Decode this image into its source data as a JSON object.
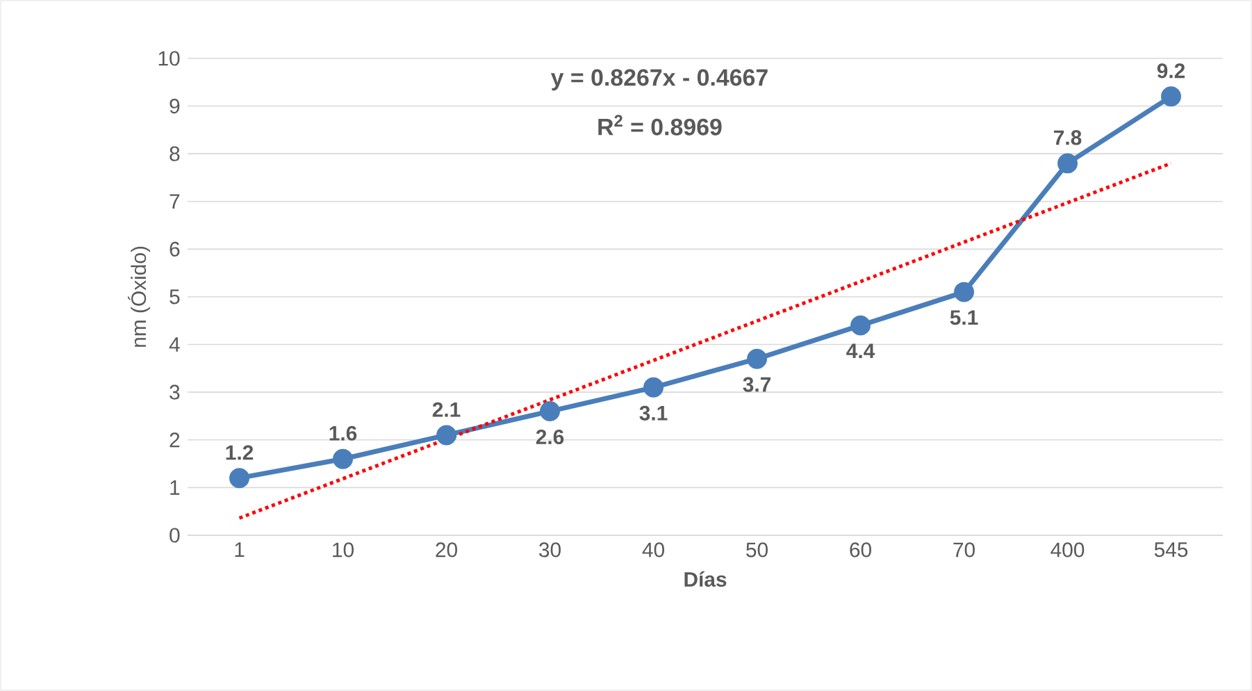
{
  "chart_data": {
    "type": "line",
    "xlabel": "Días",
    "ylabel": "nm (Óxido)",
    "categories": [
      "1",
      "10",
      "20",
      "30",
      "40",
      "50",
      "60",
      "70",
      "400",
      "545"
    ],
    "series": [
      {
        "color": "#4a7ebb",
        "values": [
          1.2,
          1.6,
          2.1,
          2.6,
          3.1,
          3.7,
          4.4,
          5.1,
          7.8,
          9.2
        ],
        "marker": "circle",
        "line_style": "solid",
        "data_labels": true
      },
      {
        "color": "#ff0000",
        "x": [
          "1",
          "545"
        ],
        "values": [
          0.36,
          7.8
        ],
        "marker": "none",
        "line_style": "dotted"
      }
    ],
    "ylim": [
      0,
      10
    ],
    "yticks": [
      0,
      1,
      2,
      3,
      4,
      5,
      6,
      7,
      8,
      9,
      10
    ],
    "grid": "y",
    "legend": false,
    "annotations": [
      "y = 0.8267x - 0.4667",
      "R$^{2}$ = 0.8969"
    ]
  }
}
